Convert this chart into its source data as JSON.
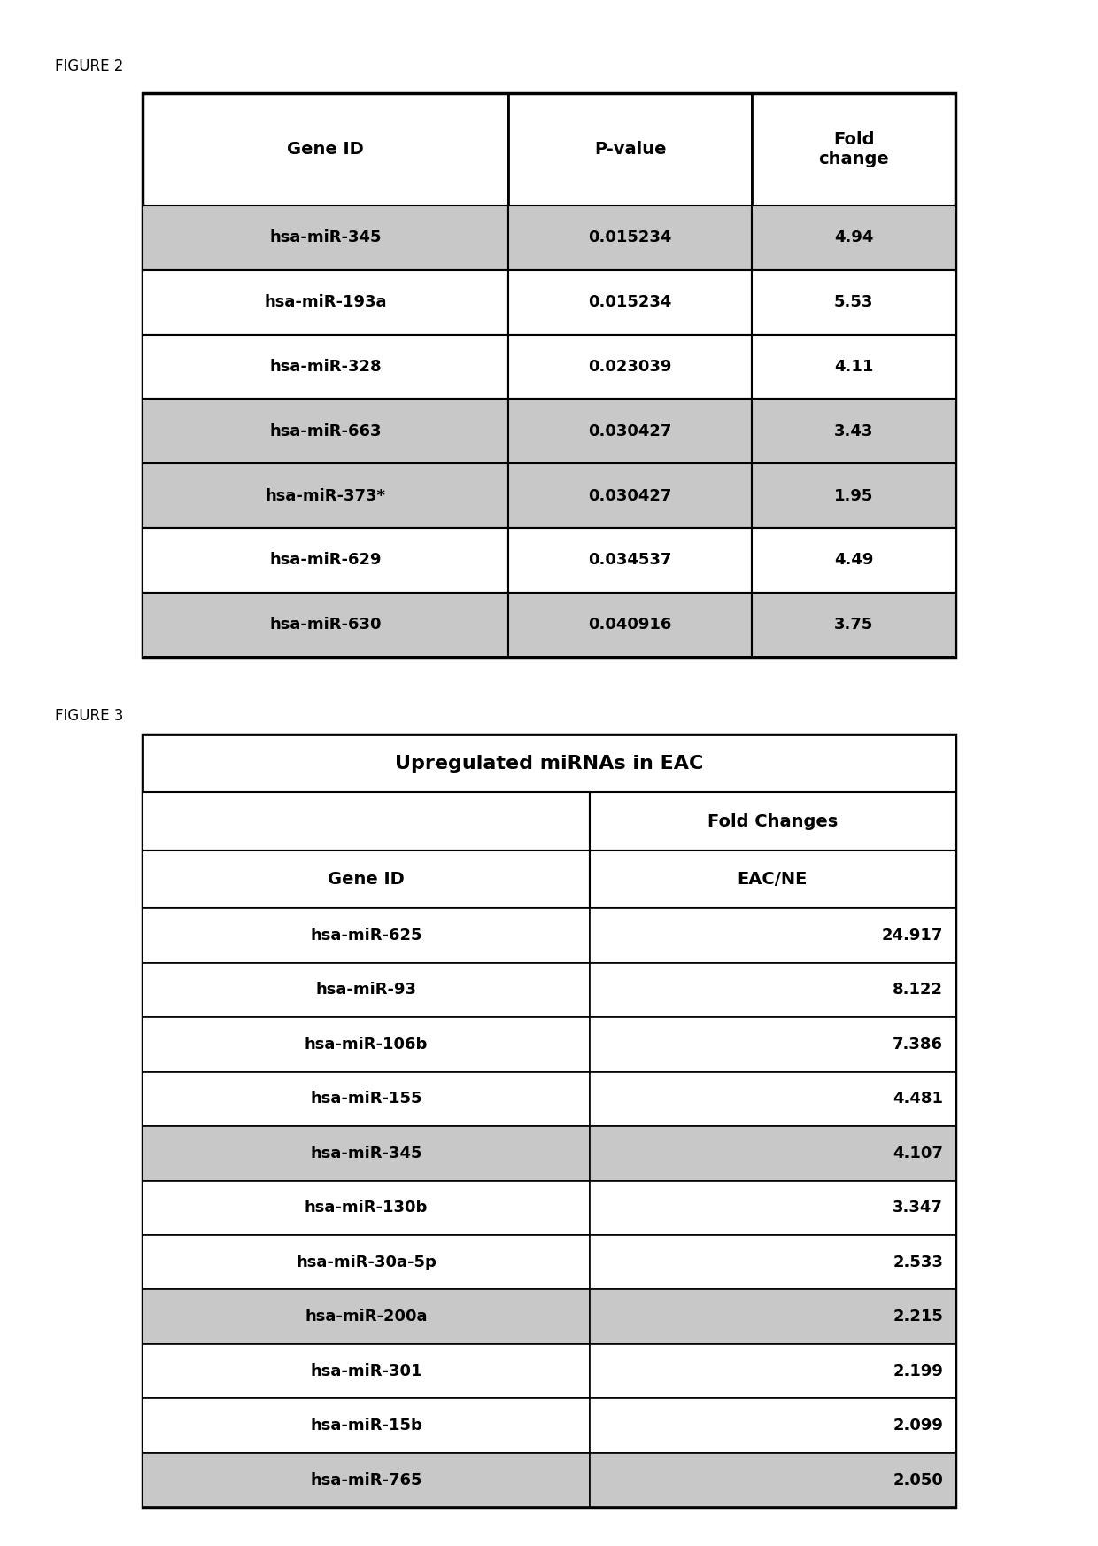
{
  "fig2_title": "FIGURE 2",
  "fig3_title": "FIGURE 3",
  "fig2_headers": [
    "Gene ID",
    "P-value",
    "Fold\nchange"
  ],
  "fig2_rows": [
    {
      "gene": "hsa-miR-345",
      "pvalue": "0.015234",
      "fold": "4.94",
      "shaded": true
    },
    {
      "gene": "hsa-miR-193a",
      "pvalue": "0.015234",
      "fold": "5.53",
      "shaded": false
    },
    {
      "gene": "hsa-miR-328",
      "pvalue": "0.023039",
      "fold": "4.11",
      "shaded": false
    },
    {
      "gene": "hsa-miR-663",
      "pvalue": "0.030427",
      "fold": "3.43",
      "shaded": true
    },
    {
      "gene": "hsa-miR-373*",
      "pvalue": "0.030427",
      "fold": "1.95",
      "shaded": true
    },
    {
      "gene": "hsa-miR-629",
      "pvalue": "0.034537",
      "fold": "4.49",
      "shaded": false
    },
    {
      "gene": "hsa-miR-630",
      "pvalue": "0.040916",
      "fold": "3.75",
      "shaded": true
    }
  ],
  "fig3_main_header": "Upregulated miRNAs in EAC",
  "fig3_sub_header2": "Fold Changes",
  "fig3_col1_header": "Gene ID",
  "fig3_col2_header": "EAC/NE",
  "fig3_rows": [
    {
      "gene": "hsa-miR-625",
      "fold": "24.917",
      "shaded": false
    },
    {
      "gene": "hsa-miR-93",
      "fold": "8.122",
      "shaded": false
    },
    {
      "gene": "hsa-miR-106b",
      "fold": "7.386",
      "shaded": false
    },
    {
      "gene": "hsa-miR-155",
      "fold": "4.481",
      "shaded": false
    },
    {
      "gene": "hsa-miR-345",
      "fold": "4.107",
      "shaded": true
    },
    {
      "gene": "hsa-miR-130b",
      "fold": "3.347",
      "shaded": false
    },
    {
      "gene": "hsa-miR-30a-5p",
      "fold": "2.533",
      "shaded": false
    },
    {
      "gene": "hsa-miR-200a",
      "fold": "2.215",
      "shaded": true
    },
    {
      "gene": "hsa-miR-301",
      "fold": "2.199",
      "shaded": false
    },
    {
      "gene": "hsa-miR-15b",
      "fold": "2.099",
      "shaded": false
    },
    {
      "gene": "hsa-miR-765",
      "fold": "2.050",
      "shaded": true
    }
  ],
  "shaded_color": "#c8c8c8",
  "white_color": "#ffffff",
  "border_color": "#000000",
  "fig_label_fontsize": 12,
  "header_fontsize": 14,
  "cell_fontsize": 13,
  "main_header_fontsize": 16
}
